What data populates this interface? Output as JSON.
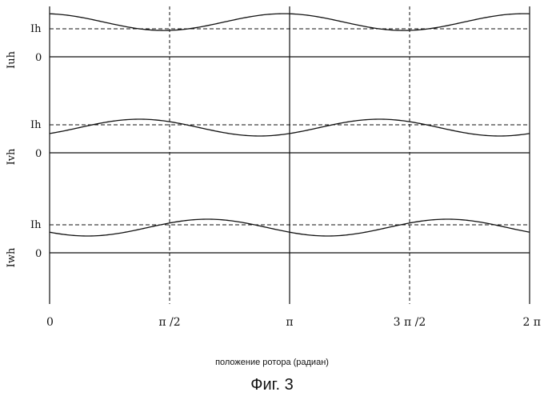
{
  "figure": {
    "caption": "Фиг. 3",
    "x_axis_label": "положение ротора (радиан)"
  },
  "chart_data": {
    "type": "line",
    "x_unit": "radians",
    "xlim": [
      0,
      6.2832
    ],
    "x_ticks": [
      {
        "value": 0,
        "label": "0"
      },
      {
        "value": 1.5708,
        "label": "π /2"
      },
      {
        "value": 3.1416,
        "label": "π"
      },
      {
        "value": 4.7124,
        "label": "3 π /2"
      },
      {
        "value": 6.2832,
        "label": "2 π"
      }
    ],
    "vertical_dashed_at": [
      1.5708,
      4.7124
    ],
    "vertical_solid_at": [
      3.1416,
      6.2832
    ],
    "panels": [
      {
        "series_name": "Iuh",
        "baseline_label": "0",
        "level_label": "Ih",
        "waveform": {
          "shape": "cosine",
          "cycles": 2,
          "offset_rel": 0.24,
          "amplitude_rel": 0.3,
          "phase": 0.15
        }
      },
      {
        "series_name": "Ivh",
        "baseline_label": "0",
        "level_label": "Ih",
        "waveform": {
          "shape": "cosine",
          "cycles": 2,
          "offset_rel": -0.1,
          "amplitude_rel": 0.3,
          "phase": -2.35
        }
      },
      {
        "series_name": "Iwh",
        "baseline_label": "0",
        "level_label": "Ih",
        "waveform": {
          "shape": "cosine",
          "cycles": 2,
          "offset_rel": -0.1,
          "amplitude_rel": 0.3,
          "phase": 2.15
        }
      }
    ]
  }
}
